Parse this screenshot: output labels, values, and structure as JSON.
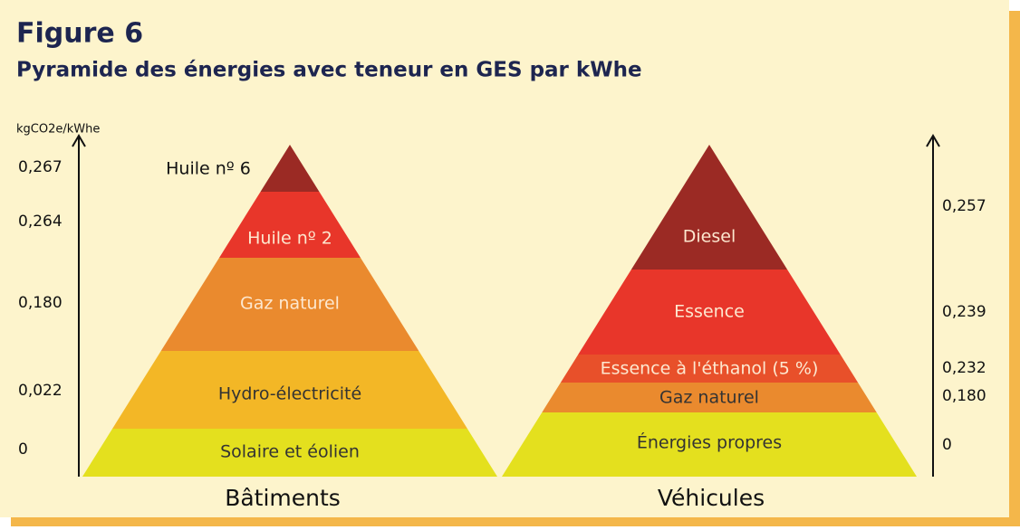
{
  "figure": "Figure 6",
  "title": "Pyramide des énergies avec teneur en GES par kWhe",
  "unit": "kgCO2e/kWhe",
  "pyramids": [
    {
      "name": "Bâtiments",
      "layers": [
        {
          "label": "Huile nº 6",
          "value": "0,267"
        },
        {
          "label": "Huile nº 2",
          "value": "0,264"
        },
        {
          "label": "Gaz naturel",
          "value": "0,180"
        },
        {
          "label": "Hydro-électricité",
          "value": "0,022"
        },
        {
          "label": "Solaire et éolien",
          "value": "0"
        }
      ]
    },
    {
      "name": "Véhicules",
      "layers": [
        {
          "label": "Diesel",
          "value": "0,257"
        },
        {
          "label": "Essence",
          "value": "0,239"
        },
        {
          "label": "Essence à l'éthanol (5 %)",
          "value": "0,232"
        },
        {
          "label": "Gaz naturel",
          "value": "0,180"
        },
        {
          "label": "Énergies propres",
          "value": "0"
        }
      ]
    }
  ]
}
